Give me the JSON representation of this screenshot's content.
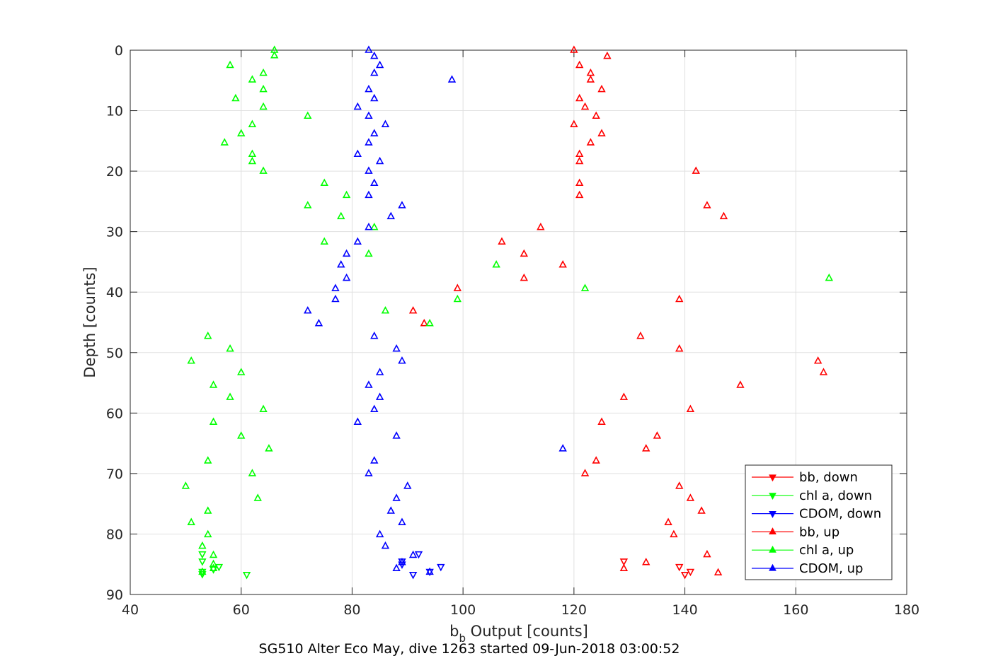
{
  "chart_data": {
    "type": "scatter",
    "caption": "SG510 Alter Eco May, dive 1263 started 09-Jun-2018 03:00:52",
    "xlabel": {
      "main": "b",
      "sub": "b",
      "rest": " Output [counts]"
    },
    "ylabel": "Depth [counts]",
    "xlim": [
      40,
      180
    ],
    "ylim": [
      0,
      90
    ],
    "y_reversed": true,
    "grid": true,
    "xticks": [
      "40",
      "60",
      "80",
      "100",
      "120",
      "140",
      "160",
      "180"
    ],
    "yticks": [
      "0",
      "10",
      "20",
      "30",
      "40",
      "50",
      "60",
      "70",
      "80",
      "90"
    ],
    "legend_position": "bottom-right",
    "colors": {
      "bb": "#ff0000",
      "chl": "#00ff00",
      "cdom": "#0000ff",
      "axis": "#262626",
      "grid": "#e0e0e0"
    },
    "legend": [
      {
        "label": "bb, down",
        "color": "#ff0000",
        "marker": "down"
      },
      {
        "label": "chl a, down",
        "color": "#00ff00",
        "marker": "down"
      },
      {
        "label": "CDOM, down",
        "color": "#0000ff",
        "marker": "down"
      },
      {
        "label": "bb, up",
        "color": "#ff0000",
        "marker": "up"
      },
      {
        "label": "chl a, up",
        "color": "#00ff00",
        "marker": "up"
      },
      {
        "label": "CDOM, up",
        "color": "#0000ff",
        "marker": "up"
      }
    ],
    "series": [
      {
        "name": "bb, down",
        "color": "#ff0000",
        "marker": "down",
        "points": [
          [
            129,
            84.5
          ],
          [
            139,
            85.4
          ],
          [
            141,
            86.2
          ],
          [
            140,
            86.7
          ]
        ]
      },
      {
        "name": "chl a, down",
        "color": "#00ff00",
        "marker": "down",
        "points": [
          [
            53,
            83.3
          ],
          [
            53,
            84.5
          ],
          [
            56,
            85.4
          ],
          [
            55,
            85.8
          ],
          [
            53,
            86.2
          ],
          [
            53,
            86.6
          ],
          [
            61,
            86.7
          ]
        ]
      },
      {
        "name": "CDOM, down",
        "color": "#0000ff",
        "marker": "down",
        "points": [
          [
            92,
            83.3
          ],
          [
            89,
            84.5
          ],
          [
            89,
            85.0
          ],
          [
            96,
            85.4
          ],
          [
            94,
            86.2
          ],
          [
            91,
            86.7
          ]
        ]
      },
      {
        "name": "bb, up",
        "color": "#ff0000",
        "marker": "up",
        "points": [
          [
            120,
            0
          ],
          [
            126,
            1
          ],
          [
            121,
            2.5
          ],
          [
            123,
            3.8
          ],
          [
            123,
            4.9
          ],
          [
            125,
            6.5
          ],
          [
            121,
            8
          ],
          [
            122,
            9.4
          ],
          [
            124,
            10.9
          ],
          [
            120,
            12.3
          ],
          [
            125,
            13.8
          ],
          [
            123,
            15.3
          ],
          [
            121,
            17.2
          ],
          [
            121,
            18.4
          ],
          [
            142,
            20
          ],
          [
            121,
            22
          ],
          [
            121,
            24
          ],
          [
            144,
            25.7
          ],
          [
            147,
            27.5
          ],
          [
            114,
            29.3
          ],
          [
            107,
            31.7
          ],
          [
            111,
            33.7
          ],
          [
            118,
            35.5
          ],
          [
            111,
            37.7
          ],
          [
            99,
            39.4
          ],
          [
            139,
            41.2
          ],
          [
            91,
            43.1
          ],
          [
            93,
            45.2
          ],
          [
            132,
            47.3
          ],
          [
            139,
            49.4
          ],
          [
            164,
            51.4
          ],
          [
            165,
            53.3
          ],
          [
            150,
            55.4
          ],
          [
            129,
            57.4
          ],
          [
            141,
            59.4
          ],
          [
            125,
            61.5
          ],
          [
            135,
            63.8
          ],
          [
            133,
            65.9
          ],
          [
            124,
            67.9
          ],
          [
            122,
            70
          ],
          [
            139,
            72.1
          ],
          [
            141,
            74.1
          ],
          [
            143,
            76.2
          ],
          [
            137,
            78.1
          ],
          [
            138,
            80.1
          ],
          [
            144,
            83.4
          ],
          [
            133,
            84.7
          ],
          [
            129,
            85.7
          ],
          [
            146,
            86.4
          ]
        ]
      },
      {
        "name": "chl a, up",
        "color": "#00ff00",
        "marker": "up",
        "points": [
          [
            66,
            0
          ],
          [
            66,
            0.9
          ],
          [
            58,
            2.5
          ],
          [
            64,
            3.8
          ],
          [
            62,
            4.9
          ],
          [
            64,
            6.5
          ],
          [
            59,
            8
          ],
          [
            64,
            9.4
          ],
          [
            72,
            10.9
          ],
          [
            62,
            12.3
          ],
          [
            60,
            13.8
          ],
          [
            57,
            15.3
          ],
          [
            62,
            17.2
          ],
          [
            62,
            18.4
          ],
          [
            64,
            20
          ],
          [
            75,
            22
          ],
          [
            79,
            24
          ],
          [
            72,
            25.7
          ],
          [
            78,
            27.5
          ],
          [
            84,
            29.3
          ],
          [
            75,
            31.7
          ],
          [
            83,
            33.7
          ],
          [
            106,
            35.5
          ],
          [
            166,
            37.7
          ],
          [
            122,
            39.4
          ],
          [
            99,
            41.2
          ],
          [
            86,
            43.1
          ],
          [
            94,
            45.2
          ],
          [
            54,
            47.3
          ],
          [
            58,
            49.4
          ],
          [
            51,
            51.4
          ],
          [
            60,
            53.3
          ],
          [
            55,
            55.4
          ],
          [
            58,
            57.4
          ],
          [
            64,
            59.4
          ],
          [
            55,
            61.5
          ],
          [
            60,
            63.8
          ],
          [
            65,
            65.9
          ],
          [
            54,
            67.9
          ],
          [
            62,
            70
          ],
          [
            50,
            72.1
          ],
          [
            63,
            74.1
          ],
          [
            54,
            76.2
          ],
          [
            51,
            78.1
          ],
          [
            54,
            80.1
          ],
          [
            53,
            82
          ],
          [
            55,
            83.5
          ],
          [
            55,
            85
          ],
          [
            55,
            85.7
          ],
          [
            53,
            86.3
          ]
        ]
      },
      {
        "name": "CDOM, up",
        "color": "#0000ff",
        "marker": "up",
        "points": [
          [
            83,
            0
          ],
          [
            84,
            1
          ],
          [
            85,
            2.5
          ],
          [
            84,
            3.8
          ],
          [
            98,
            4.9
          ],
          [
            83,
            6.5
          ],
          [
            84,
            8
          ],
          [
            81,
            9.4
          ],
          [
            83,
            10.9
          ],
          [
            86,
            12.3
          ],
          [
            84,
            13.8
          ],
          [
            83,
            15.3
          ],
          [
            81,
            17.2
          ],
          [
            85,
            18.4
          ],
          [
            83,
            20
          ],
          [
            84,
            22
          ],
          [
            83,
            24
          ],
          [
            89,
            25.7
          ],
          [
            87,
            27.5
          ],
          [
            83,
            29.3
          ],
          [
            81,
            31.7
          ],
          [
            79,
            33.7
          ],
          [
            78,
            35.5
          ],
          [
            79,
            37.7
          ],
          [
            77,
            39.4
          ],
          [
            77,
            41.2
          ],
          [
            72,
            43.1
          ],
          [
            74,
            45.2
          ],
          [
            84,
            47.3
          ],
          [
            88,
            49.4
          ],
          [
            89,
            51.4
          ],
          [
            85,
            53.3
          ],
          [
            83,
            55.4
          ],
          [
            85,
            57.4
          ],
          [
            84,
            59.4
          ],
          [
            81,
            61.5
          ],
          [
            88,
            63.8
          ],
          [
            118,
            65.9
          ],
          [
            84,
            67.9
          ],
          [
            83,
            70
          ],
          [
            90,
            72.1
          ],
          [
            88,
            74.1
          ],
          [
            87,
            76.2
          ],
          [
            89,
            78.1
          ],
          [
            85,
            80.1
          ],
          [
            86,
            82
          ],
          [
            91,
            83.5
          ],
          [
            89,
            84.7
          ],
          [
            88,
            85.7
          ],
          [
            94,
            86.3
          ]
        ]
      }
    ]
  }
}
